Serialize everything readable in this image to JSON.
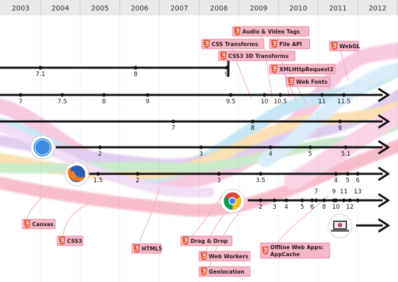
{
  "years": [
    "2003",
    "2004",
    "2005",
    "2006",
    "2007",
    "2008",
    "2009",
    "2010",
    "2011",
    "2012"
  ],
  "colors": {
    "timeline_axis": "#e9e9e9",
    "axis_text": "#333333",
    "line": "#111111",
    "html5_badge": "#e44d26",
    "tag_bg": "#f6b8c8",
    "tag_border": "#e0809a",
    "leader": "#ef6e97"
  },
  "browsers": [
    {
      "name": "internet-explorer",
      "icon": null,
      "has_end_marker": true,
      "versions": [
        {
          "label": "7.1",
          "year": 2003.5
        },
        {
          "label": "8",
          "year": 2005.9
        },
        {
          "label": "9",
          "year": 2008.2
        }
      ]
    },
    {
      "name": "opera",
      "icon": null,
      "has_end_marker": false,
      "versions": [
        {
          "label": "7",
          "year": 2003.0
        },
        {
          "label": "7.5",
          "year": 2004.05
        },
        {
          "label": "8",
          "year": 2005.1
        },
        {
          "label": "9",
          "year": 2006.2
        },
        {
          "label": "9.5",
          "year": 2008.3
        },
        {
          "label": "10",
          "year": 2009.15
        },
        {
          "label": "10.5",
          "year": 2009.55
        },
        {
          "label": "11",
          "year": 2010.6
        },
        {
          "label": "11.5",
          "year": 2011.15
        }
      ]
    },
    {
      "name": "safari-mobile",
      "icon": null,
      "has_end_marker": false,
      "versions": [
        {
          "label": "7",
          "year": 2006.85
        },
        {
          "label": "8",
          "year": 2008.85
        },
        {
          "label": "9",
          "year": 2011.05
        }
      ]
    },
    {
      "name": "safari",
      "icon": "safari-icon",
      "has_end_marker": false,
      "versions": [
        {
          "label": "2",
          "year": 2005.0
        },
        {
          "label": "3",
          "year": 2007.55
        },
        {
          "label": "4",
          "year": 2009.3
        },
        {
          "label": "5",
          "year": 2010.3
        },
        {
          "label": "5.1",
          "year": 2011.2
        }
      ]
    },
    {
      "name": "firefox",
      "icon": "firefox-icon",
      "has_end_marker": false,
      "versions": [
        {
          "label": "1.5",
          "year": 2004.95
        },
        {
          "label": "2",
          "year": 2005.95
        },
        {
          "label": "3",
          "year": 2008.0
        },
        {
          "label": "3.5",
          "year": 2009.05
        },
        {
          "label": "4",
          "year": 2010.95
        },
        {
          "label": "5",
          "year": 2011.25
        },
        {
          "label": "6",
          "year": 2011.5
        }
      ]
    },
    {
      "name": "chrome",
      "icon": "chrome-icon",
      "has_end_marker": false,
      "versions": [
        {
          "label": "2",
          "year": 2009.05
        },
        {
          "label": "3",
          "year": 2009.4
        },
        {
          "label": "4",
          "year": 2009.7
        },
        {
          "label": "5",
          "year": 2010.1
        },
        {
          "label": "6",
          "year": 2010.35
        },
        {
          "label": "7",
          "year": 2010.45
        },
        {
          "label": "8",
          "year": 2010.65
        },
        {
          "label": "9",
          "year": 2010.9
        },
        {
          "label": "10",
          "year": 2010.95
        },
        {
          "label": "11",
          "year": 2011.15
        },
        {
          "label": "12",
          "year": 2011.3
        },
        {
          "label": "13",
          "year": 2011.5
        }
      ]
    },
    {
      "name": "chrome-os",
      "icon": "chromebook-icon",
      "has_end_marker": false,
      "versions": []
    }
  ],
  "features": [
    "CSS Transforms",
    "Audio & Video Tags",
    "CSS3 3D Transforms",
    "File API",
    "XMLHttpRequest2",
    "Web Fonts",
    "WebGL",
    "Canvas",
    "CSS3",
    "HTML5",
    "Drag & Drop",
    "Web Workers",
    "Geolocation",
    "Offline Web Apps: AppCache"
  ]
}
